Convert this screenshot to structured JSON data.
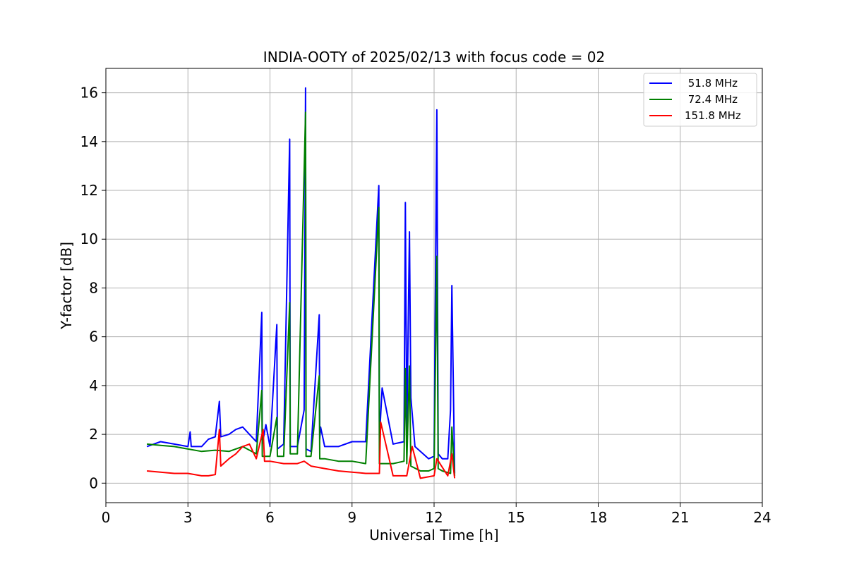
{
  "chart_data": {
    "type": "line",
    "title": "INDIA-OOTY of 2025/02/13 with focus code = 02",
    "xlabel": "Universal Time [h]",
    "ylabel": "Y-factor [dB]",
    "xlim": [
      0,
      24
    ],
    "ylim": [
      -0.8,
      17
    ],
    "xticks": [
      0,
      3,
      6,
      9,
      12,
      15,
      18,
      21,
      24
    ],
    "yticks": [
      0,
      2,
      4,
      6,
      8,
      10,
      12,
      14,
      16
    ],
    "grid": true,
    "legend_position": "top-right",
    "series": [
      {
        "name": " 51.8 MHz",
        "color": "#0000ff",
        "x": [
          1.5,
          2.0,
          2.5,
          3.0,
          3.08,
          3.12,
          3.5,
          3.75,
          4.0,
          4.15,
          4.2,
          4.5,
          4.75,
          5.0,
          5.25,
          5.5,
          5.7,
          5.72,
          5.85,
          6.0,
          6.25,
          6.27,
          6.5,
          6.72,
          6.74,
          7.0,
          7.25,
          7.3,
          7.32,
          7.5,
          7.8,
          7.82,
          7.85,
          8.0,
          8.5,
          9.0,
          9.5,
          9.98,
          10.0,
          10.1,
          10.5,
          10.9,
          10.95,
          11.0,
          11.1,
          11.15,
          11.3,
          11.5,
          11.8,
          12.0,
          12.1,
          12.15,
          12.3,
          12.5,
          12.6,
          12.65,
          12.75
        ],
        "y": [
          1.5,
          1.7,
          1.6,
          1.5,
          2.1,
          1.5,
          1.5,
          1.8,
          1.9,
          3.35,
          1.9,
          2.0,
          2.2,
          2.3,
          2.0,
          1.7,
          7.0,
          1.6,
          2.4,
          1.5,
          6.5,
          1.4,
          1.6,
          14.1,
          1.5,
          1.5,
          3.0,
          16.2,
          1.4,
          1.3,
          6.9,
          1.8,
          2.3,
          1.5,
          1.5,
          1.7,
          1.7,
          12.2,
          1.8,
          3.9,
          1.6,
          1.7,
          11.5,
          2.0,
          10.3,
          3.5,
          1.5,
          1.3,
          1.0,
          1.1,
          15.3,
          1.2,
          1.0,
          1.0,
          3.0,
          8.1,
          0.4
        ]
      },
      {
        "name": " 72.4 MHz",
        "color": "#008000",
        "x": [
          1.5,
          2.0,
          2.5,
          3.0,
          3.5,
          4.0,
          4.5,
          5.0,
          5.5,
          5.7,
          5.72,
          6.0,
          6.25,
          6.27,
          6.5,
          6.72,
          6.74,
          7.0,
          7.3,
          7.32,
          7.5,
          7.8,
          7.82,
          8.0,
          8.5,
          9.0,
          9.5,
          9.98,
          10.0,
          10.5,
          10.9,
          10.95,
          11.0,
          11.1,
          11.15,
          11.5,
          11.8,
          12.0,
          12.1,
          12.15,
          12.3,
          12.6,
          12.65,
          12.75
        ],
        "y": [
          1.6,
          1.55,
          1.5,
          1.4,
          1.3,
          1.35,
          1.3,
          1.5,
          1.2,
          3.8,
          1.1,
          1.1,
          2.7,
          1.1,
          1.1,
          7.4,
          1.2,
          1.2,
          15.2,
          1.1,
          1.1,
          4.4,
          1.0,
          1.0,
          0.9,
          0.9,
          0.8,
          11.3,
          0.8,
          0.8,
          0.9,
          4.7,
          0.8,
          4.8,
          0.7,
          0.5,
          0.5,
          0.6,
          9.3,
          0.6,
          0.5,
          0.4,
          2.3,
          0.3
        ]
      },
      {
        "name": "151.8 MHz",
        "color": "#ff0000",
        "x": [
          1.5,
          2.0,
          2.5,
          3.0,
          3.5,
          3.75,
          4.0,
          4.15,
          4.2,
          4.5,
          4.75,
          5.0,
          5.25,
          5.5,
          5.75,
          5.8,
          6.0,
          6.5,
          7.0,
          7.25,
          7.5,
          8.0,
          8.5,
          9.0,
          9.5,
          10.0,
          10.05,
          10.5,
          11.0,
          11.2,
          11.5,
          12.0,
          12.1,
          12.5,
          12.65,
          12.75
        ],
        "y": [
          0.5,
          0.45,
          0.4,
          0.4,
          0.3,
          0.3,
          0.35,
          2.2,
          0.7,
          1.0,
          1.2,
          1.5,
          1.6,
          1.0,
          2.2,
          0.9,
          0.9,
          0.8,
          0.8,
          0.9,
          0.7,
          0.6,
          0.5,
          0.45,
          0.4,
          0.4,
          2.5,
          0.3,
          0.3,
          1.5,
          0.2,
          0.3,
          1.0,
          0.3,
          1.2,
          0.2
        ]
      }
    ]
  }
}
